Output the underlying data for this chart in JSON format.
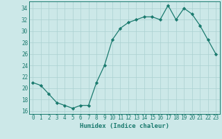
{
  "x": [
    0,
    1,
    2,
    3,
    4,
    5,
    6,
    7,
    8,
    9,
    10,
    11,
    12,
    13,
    14,
    15,
    16,
    17,
    18,
    19,
    20,
    21,
    22,
    23
  ],
  "y": [
    21,
    20.5,
    19,
    17.5,
    17,
    16.5,
    17,
    17,
    21,
    24,
    28.5,
    30.5,
    31.5,
    32,
    32.5,
    32.5,
    32,
    34.5,
    32,
    34,
    33,
    31,
    28.5,
    26
  ],
  "line_color": "#1a7a6e",
  "marker_color": "#1a7a6e",
  "bg_color": "#cce8e8",
  "grid_major_color": "#aad0d0",
  "grid_minor_color": "#bbdcdc",
  "xlabel": "Humidex (Indice chaleur)",
  "xlim": [
    -0.5,
    23.5
  ],
  "ylim": [
    15.5,
    35.2
  ],
  "yticks": [
    16,
    18,
    20,
    22,
    24,
    26,
    28,
    30,
    32,
    34
  ],
  "xticks": [
    0,
    1,
    2,
    3,
    4,
    5,
    6,
    7,
    8,
    9,
    10,
    11,
    12,
    13,
    14,
    15,
    16,
    17,
    18,
    19,
    20,
    21,
    22,
    23
  ],
  "tick_fontsize": 5.5,
  "label_fontsize": 6.5
}
